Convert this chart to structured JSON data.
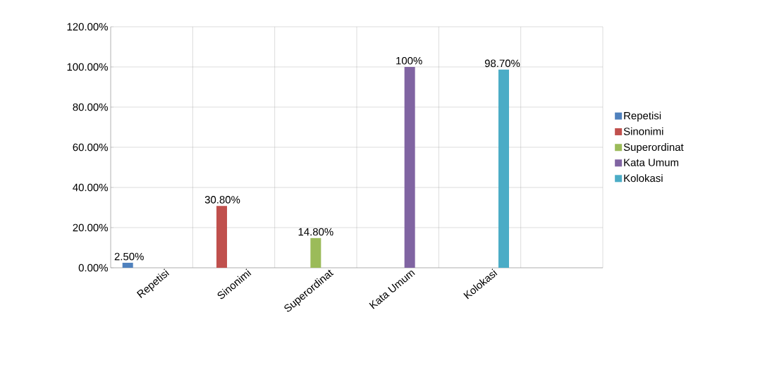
{
  "chart_data": {
    "type": "bar",
    "categories": [
      "Repetisi",
      "Sinonimi",
      "Superordinat",
      "Kata Umum",
      "Kolokasi",
      null
    ],
    "series": [
      {
        "name": "Repetisi",
        "color": "#4f81bd",
        "values": [
          2.5,
          null,
          null,
          null,
          null,
          null
        ],
        "value_labels": [
          "2.50%",
          null,
          null,
          null,
          null,
          null
        ]
      },
      {
        "name": "Sinonimi",
        "color": "#c0504d",
        "values": [
          null,
          30.8,
          null,
          null,
          null,
          null
        ],
        "value_labels": [
          null,
          "30.80%",
          null,
          null,
          null,
          null
        ]
      },
      {
        "name": "Superordinat",
        "color": "#9bbb59",
        "values": [
          null,
          null,
          14.8,
          null,
          null,
          null
        ],
        "value_labels": [
          null,
          null,
          "14.80%",
          null,
          null,
          null
        ]
      },
      {
        "name": "Kata Umum",
        "color": "#8064a2",
        "values": [
          null,
          null,
          null,
          100,
          null,
          null
        ],
        "value_labels": [
          null,
          null,
          null,
          "100%",
          null,
          null
        ]
      },
      {
        "name": "Kolokasi",
        "color": "#4bacc6",
        "values": [
          null,
          null,
          null,
          null,
          98.7,
          null
        ],
        "value_labels": [
          null,
          null,
          null,
          null,
          "98.70%",
          null
        ]
      }
    ],
    "ylim": [
      0,
      120
    ],
    "yticks": [
      {
        "value": 0,
        "label": "0.00%"
      },
      {
        "value": 20,
        "label": "20.00%"
      },
      {
        "value": 40,
        "label": "40.00%"
      },
      {
        "value": 60,
        "label": "60.00%"
      },
      {
        "value": 80,
        "label": "80.00%"
      },
      {
        "value": 100,
        "label": "100.00%"
      },
      {
        "value": 120,
        "label": "120.00%"
      }
    ],
    "grid": true,
    "legend": "right"
  }
}
